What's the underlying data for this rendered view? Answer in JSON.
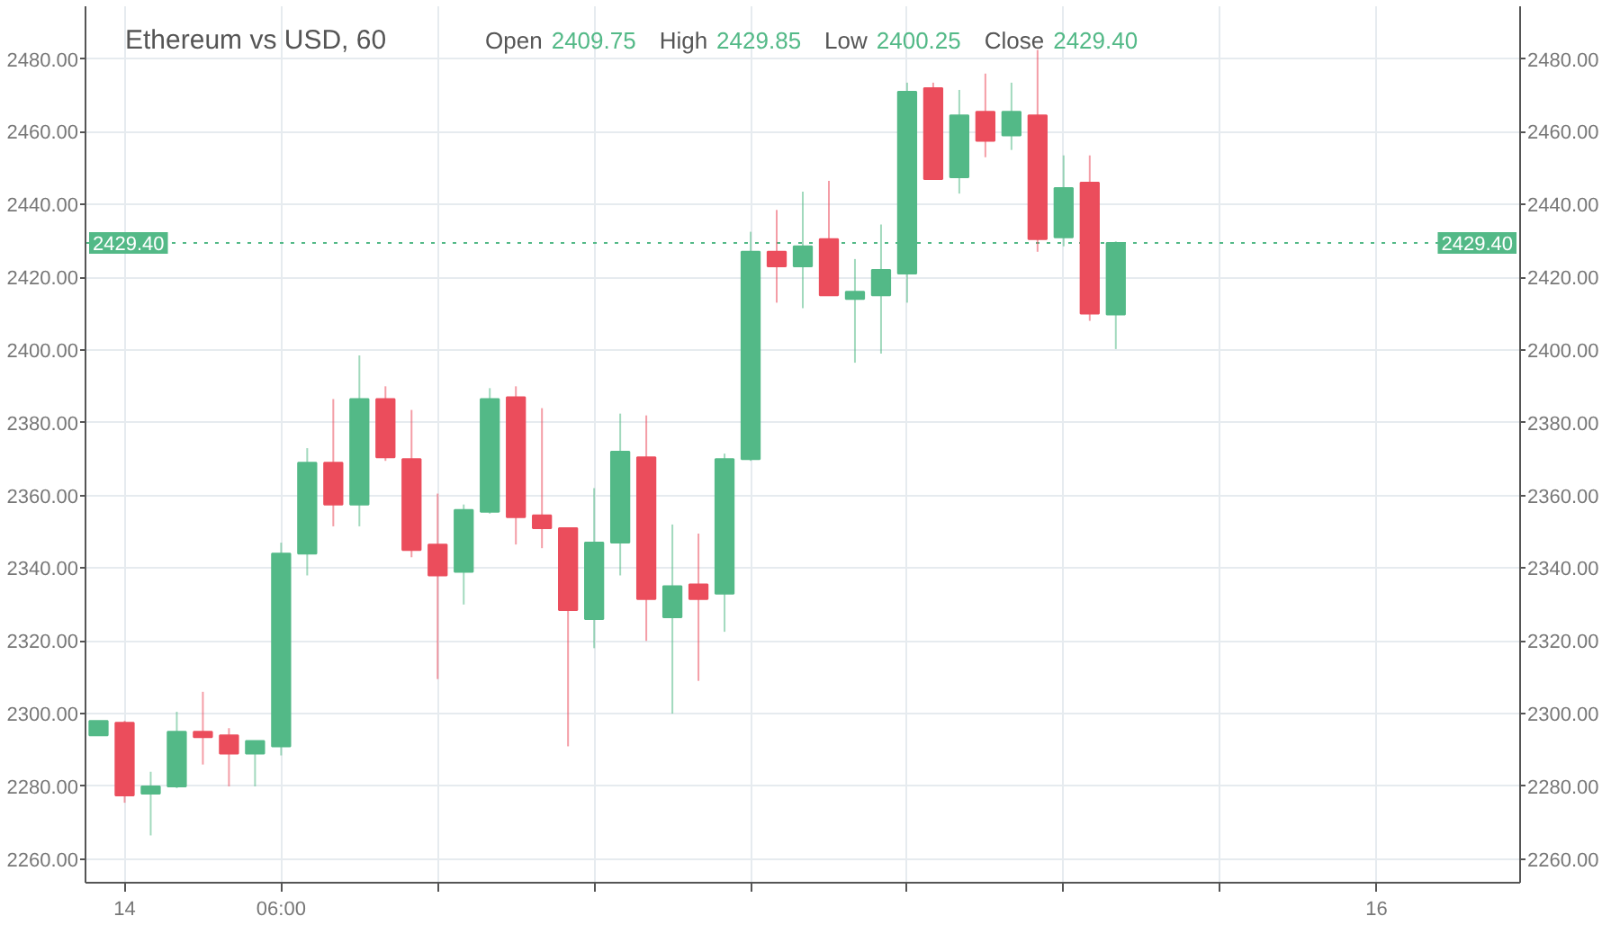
{
  "chart_data": {
    "type": "candlestick",
    "title": "Ethereum vs USD, 60",
    "annotations": [
      "Open",
      "2409.75",
      "High",
      "2429.85",
      "Low",
      "2400.25",
      "Close",
      "2429.40"
    ],
    "categories": [
      null,
      "14",
      null,
      null,
      null,
      null,
      null,
      "06:00",
      null,
      null,
      null,
      null,
      null,
      null,
      null,
      null,
      null,
      null,
      null,
      null,
      null,
      null,
      null,
      null,
      null,
      null,
      null,
      null,
      null,
      null,
      null,
      null,
      null,
      null,
      null,
      null,
      null,
      null,
      null,
      null,
      null,
      null,
      null,
      null,
      null,
      null,
      null,
      null,
      null,
      "16",
      null,
      null,
      null,
      null,
      null
    ],
    "ohlc": [
      [
        2294,
        2298,
        2294,
        2298
      ],
      [
        2297.5,
        2298,
        2275.5,
        2277.5
      ],
      [
        2278,
        2284,
        2266.5,
        2280
      ],
      [
        2280,
        2300.5,
        2279.5,
        2295
      ],
      [
        2295,
        2306,
        2286,
        2293.5
      ],
      [
        2294,
        2296,
        2280,
        2289
      ],
      [
        2289,
        2292.5,
        2280,
        2292.5
      ],
      [
        2291,
        2347,
        2288.5,
        2344
      ],
      [
        2344,
        2373,
        2338,
        2369
      ],
      [
        2369,
        2386.5,
        2351.5,
        2357.5
      ],
      [
        2357.5,
        2398.5,
        2351.5,
        2386.5
      ],
      [
        2386.5,
        2390,
        2369.5,
        2370.5
      ],
      [
        2370,
        2383.5,
        2343,
        2345
      ],
      [
        2346.5,
        2360.5,
        2309.5,
        2338
      ],
      [
        2339,
        2357.5,
        2330,
        2356
      ],
      [
        2355.5,
        2389.5,
        2355,
        2386.5
      ],
      [
        2387,
        2390,
        2346.5,
        2354
      ],
      [
        2354.5,
        2384,
        2345.5,
        2351
      ],
      [
        2351,
        2351,
        2291,
        2328.5
      ],
      [
        2326,
        2362,
        2318,
        2347
      ],
      [
        2347,
        2382.5,
        2338,
        2372
      ],
      [
        2370.5,
        2382,
        2320,
        2331.5
      ],
      [
        2326.5,
        2352,
        2300,
        2335
      ],
      [
        2335.5,
        2349.5,
        2309,
        2331.5
      ],
      [
        2333,
        2371.5,
        2322.5,
        2370
      ],
      [
        2370,
        2432.5,
        2369.5,
        2427
      ],
      [
        2427,
        2438.5,
        2413,
        2423
      ],
      [
        2423,
        2443.5,
        2411.5,
        2428.5
      ],
      [
        2430.5,
        2446.5,
        2415,
        2415
      ],
      [
        2414,
        2425,
        2396.5,
        2416
      ],
      [
        2415,
        2434.5,
        2399,
        2422
      ],
      [
        2421,
        2473.5,
        2413,
        2471
      ],
      [
        2472,
        2473.5,
        2447,
        2447
      ],
      [
        2447.5,
        2471.5,
        2443,
        2464.5
      ],
      [
        2465.5,
        2476,
        2453,
        2457.5
      ],
      [
        2459,
        2473.5,
        2455,
        2465.5
      ],
      [
        2464.5,
        2482.5,
        2427,
        2430.5
      ],
      [
        2431,
        2453.5,
        2428.5,
        2444.5
      ],
      [
        2446,
        2453.5,
        2408,
        2410
      ],
      [
        2409.75,
        2429.85,
        2400.25,
        2429.4
      ],
      null,
      null,
      null,
      null,
      null,
      null,
      null,
      null,
      null,
      null,
      null,
      null,
      null,
      null,
      null
    ],
    "colors": [
      "#53b987",
      "#eb4d5c",
      "#53b987",
      "#53b987",
      "#eb4d5c",
      "#eb4d5c",
      "#53b987",
      "#53b987",
      "#53b987",
      "#eb4d5c",
      "#53b987",
      "#eb4d5c",
      "#eb4d5c",
      "#eb4d5c",
      "#53b987",
      "#53b987",
      "#eb4d5c",
      "#eb4d5c",
      "#eb4d5c",
      "#53b987",
      "#53b987",
      "#eb4d5c",
      "#53b987",
      "#eb4d5c",
      "#53b987",
      "#53b987",
      "#eb4d5c",
      "#53b987",
      "#eb4d5c",
      "#53b987",
      "#53b987",
      "#53b987",
      "#eb4d5c",
      "#53b987",
      "#eb4d5c",
      "#53b987",
      "#eb4d5c",
      "#53b987",
      "#eb4d5c",
      "#53b987",
      null,
      null,
      null,
      null,
      null,
      null,
      null,
      null,
      null,
      null,
      null,
      null,
      null,
      null,
      null
    ],
    "ylim": [
      2253.5,
      2494.5
    ],
    "yticks": [
      {
        "value": 2260,
        "label": "2260.00"
      },
      {
        "value": 2280,
        "label": "2280.00"
      },
      {
        "value": 2300,
        "label": "2300.00"
      },
      {
        "value": 2320,
        "label": "2320.00"
      },
      {
        "value": 2340,
        "label": "2340.00"
      },
      {
        "value": 2360,
        "label": "2360.00"
      },
      {
        "value": 2380,
        "label": "2380.00"
      },
      {
        "value": 2400,
        "label": "2400.00"
      },
      {
        "value": 2420,
        "label": "2420.00"
      },
      {
        "value": 2440,
        "label": "2440.00"
      },
      {
        "value": 2460,
        "label": "2460.00"
      },
      {
        "value": 2480,
        "label": "2480.00"
      }
    ],
    "y2lim": [
      2253.5,
      2494.5
    ],
    "y2ticks": [
      {
        "value": 2260,
        "label": "2260.00"
      },
      {
        "value": 2280,
        "label": "2280.00"
      },
      {
        "value": 2300,
        "label": "2300.00"
      },
      {
        "value": 2320,
        "label": "2320.00"
      },
      {
        "value": 2340,
        "label": "2340.00"
      },
      {
        "value": 2360,
        "label": "2360.00"
      },
      {
        "value": 2380,
        "label": "2380.00"
      },
      {
        "value": 2400,
        "label": "2400.00"
      },
      {
        "value": 2420,
        "label": "2420.00"
      },
      {
        "value": 2440,
        "label": "2440.00"
      },
      {
        "value": 2460,
        "label": "2460.00"
      },
      {
        "value": 2480,
        "label": "2480.00"
      }
    ],
    "ref_lines": [
      {
        "axis": "y",
        "value": 2429.4,
        "label": "2429.40",
        "color": "#53b987",
        "line_style": "dotted"
      }
    ],
    "grid": true
  }
}
